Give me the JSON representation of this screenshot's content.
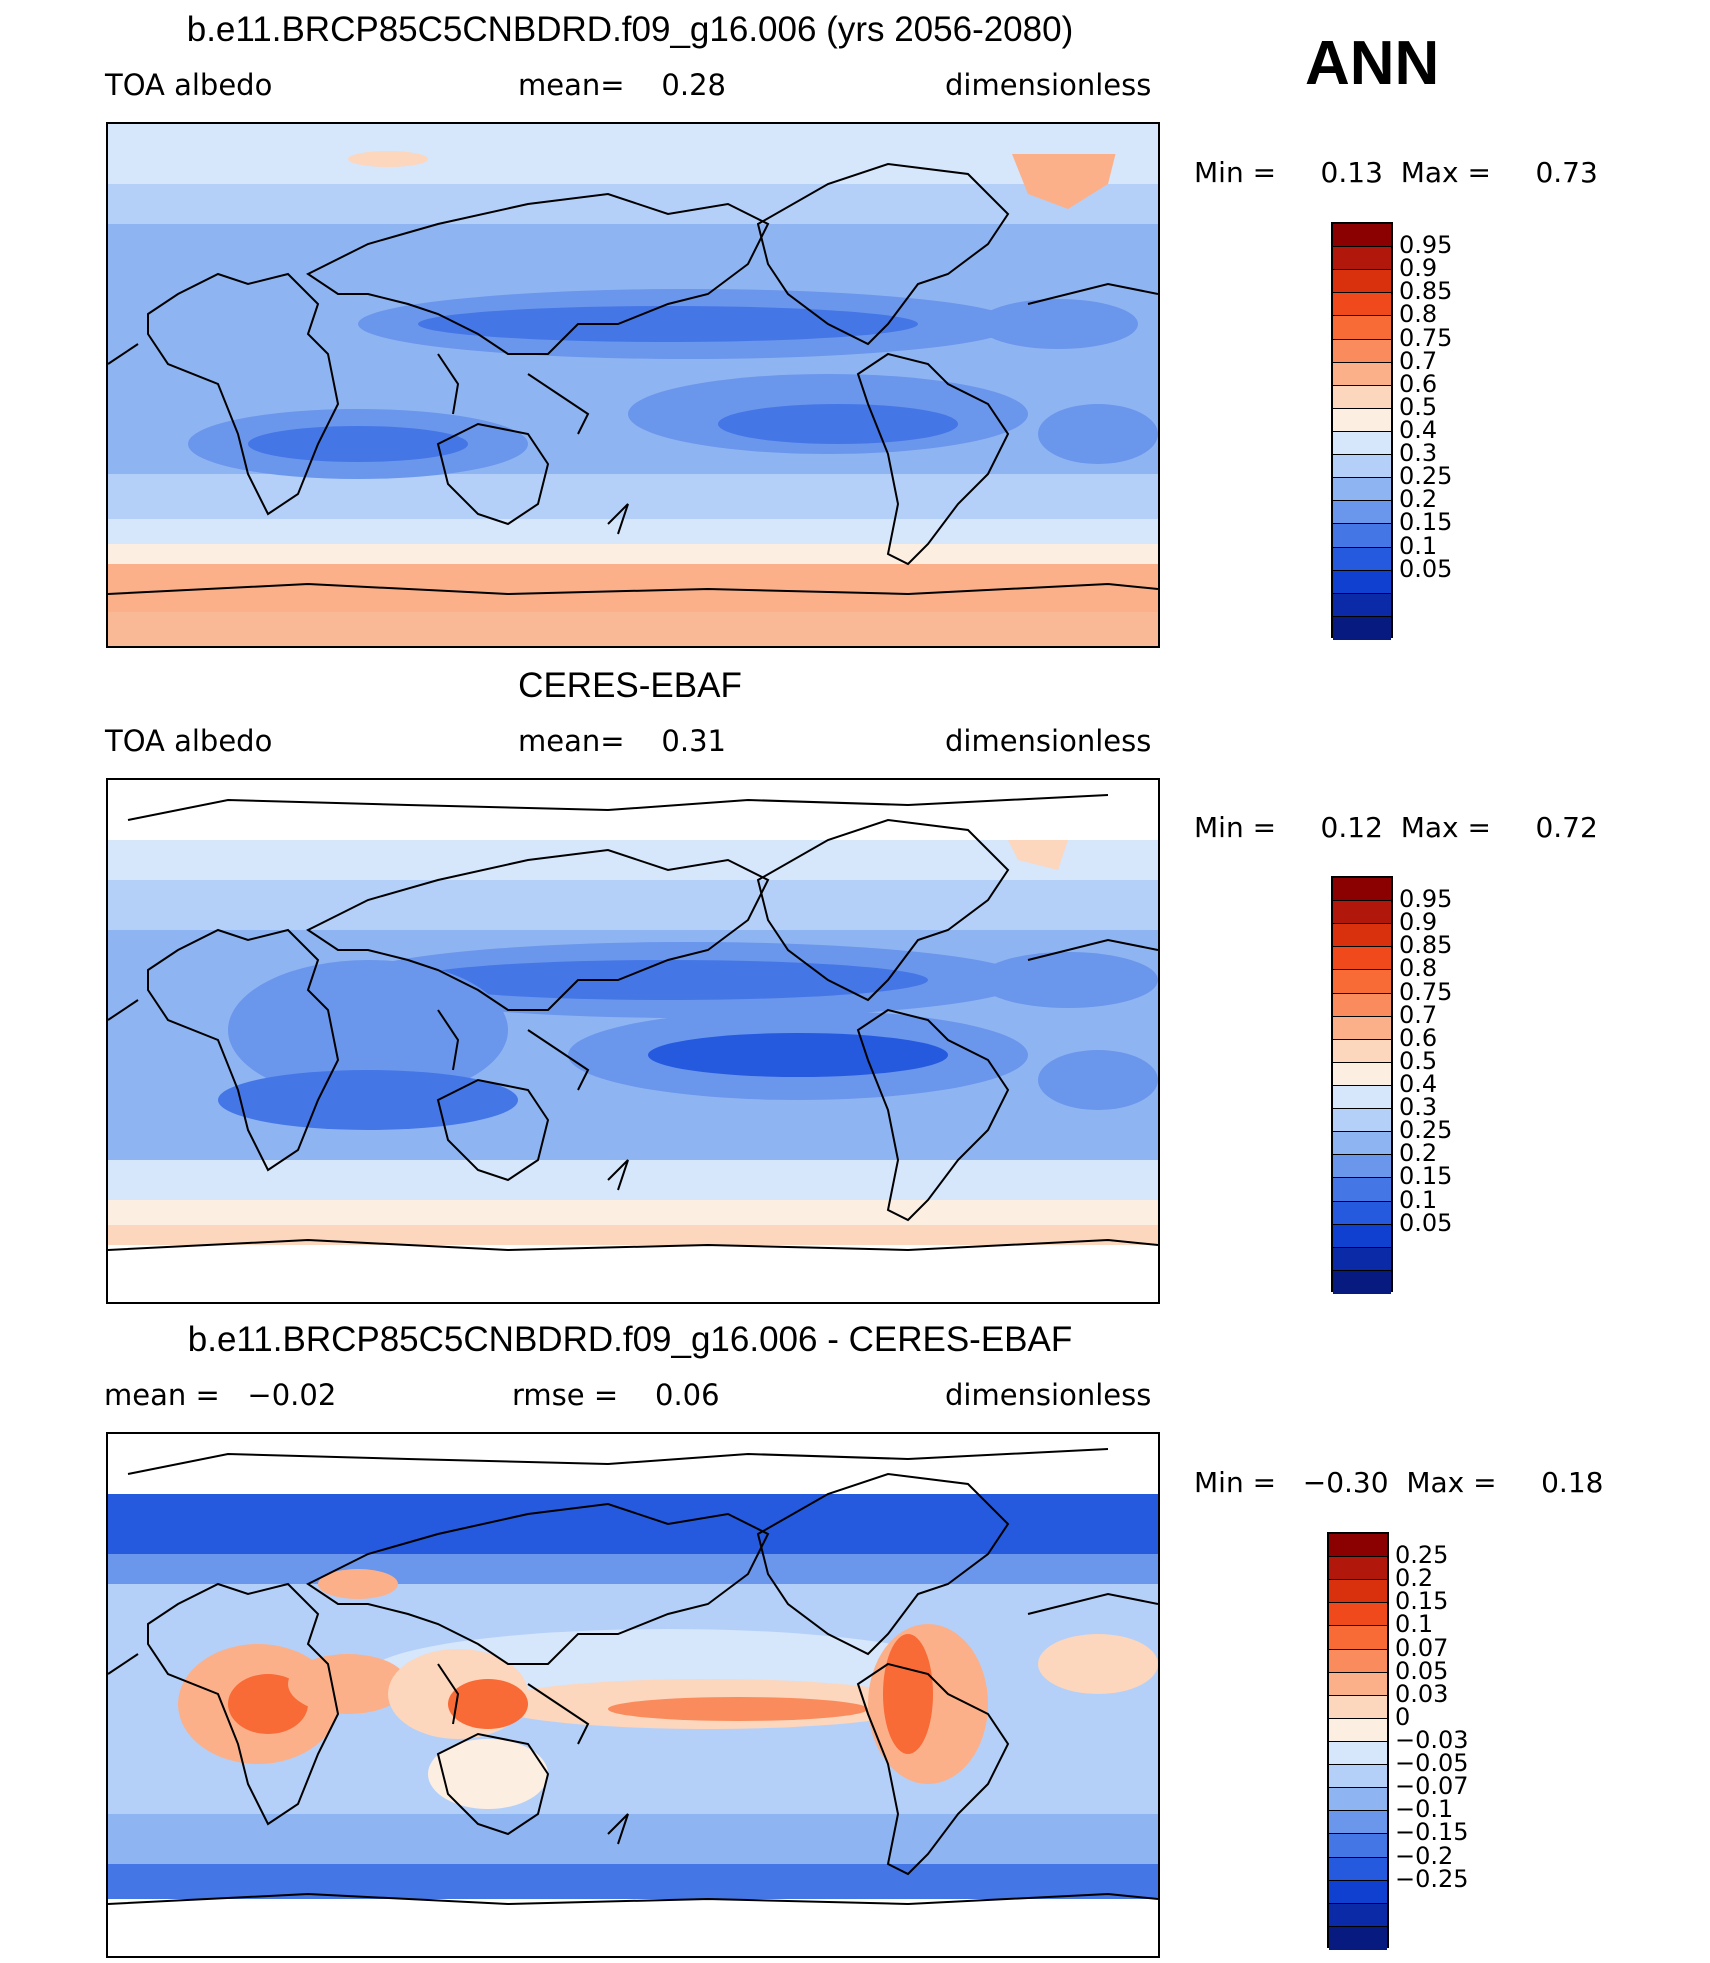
{
  "header": {
    "ann_label": "ANN"
  },
  "panels": [
    {
      "title": "b.e11.BRCP85C5CNBDRD.f09_g16.006 (yrs 2056-2080)",
      "left_label": "TOA albedo",
      "center_label": "mean=    0.28",
      "right_label": "dimensionless",
      "minmax": "Min =     0.13  Max =     0.73",
      "colorbar": {
        "labels": [
          "0.95",
          "0.9",
          "0.85",
          "0.8",
          "0.75",
          "0.7",
          "0.6",
          "0.5",
          "0.4",
          "0.3",
          "0.25",
          "0.2",
          "0.15",
          "0.1",
          "0.05"
        ],
        "colors": [
          "#8b0000",
          "#b2170c",
          "#d9300e",
          "#f04a1c",
          "#f86a36",
          "#f98b5c",
          "#fbb08a",
          "#fcd6bd",
          "#fdeee2",
          "#d6e6fb",
          "#b4d0f8",
          "#8eb4f2",
          "#6a96ec",
          "#4476e6",
          "#2559de",
          "#1040d0",
          "#0a2aa8",
          "#061a80"
        ]
      }
    },
    {
      "title": "CERES-EBAF",
      "left_label": "TOA albedo",
      "center_label": "mean=    0.31",
      "right_label": "dimensionless",
      "minmax": "Min =     0.12  Max =     0.72",
      "colorbar": {
        "labels": [
          "0.95",
          "0.9",
          "0.85",
          "0.8",
          "0.75",
          "0.7",
          "0.6",
          "0.5",
          "0.4",
          "0.3",
          "0.25",
          "0.2",
          "0.15",
          "0.1",
          "0.05"
        ],
        "colors": [
          "#8b0000",
          "#b2170c",
          "#d9300e",
          "#f04a1c",
          "#f86a36",
          "#f98b5c",
          "#fbb08a",
          "#fcd6bd",
          "#fdeee2",
          "#d6e6fb",
          "#b4d0f8",
          "#8eb4f2",
          "#6a96ec",
          "#4476e6",
          "#2559de",
          "#1040d0",
          "#0a2aa8",
          "#061a80"
        ]
      }
    },
    {
      "title": "b.e11.BRCP85C5CNBDRD.f09_g16.006 - CERES-EBAF",
      "left_label": "mean =   −0.02",
      "center_label": "rmse =    0.06",
      "right_label": "dimensionless",
      "minmax": "Min =   −0.30  Max =     0.18",
      "colorbar": {
        "labels": [
          "0.25",
          "0.2",
          "0.15",
          "0.1",
          "0.07",
          "0.05",
          "0.03",
          "0",
          "−0.03",
          "−0.05",
          "−0.07",
          "−0.1",
          "−0.15",
          "−0.2",
          "−0.25"
        ],
        "colors": [
          "#8b0000",
          "#b2170c",
          "#d9300e",
          "#f04a1c",
          "#f86a36",
          "#f98b5c",
          "#fbb08a",
          "#fcd6bd",
          "#fdeee2",
          "#d6e6fb",
          "#b4d0f8",
          "#8eb4f2",
          "#6a96ec",
          "#4476e6",
          "#2559de",
          "#1040d0",
          "#0a2aa8",
          "#061a80"
        ]
      }
    }
  ]
}
